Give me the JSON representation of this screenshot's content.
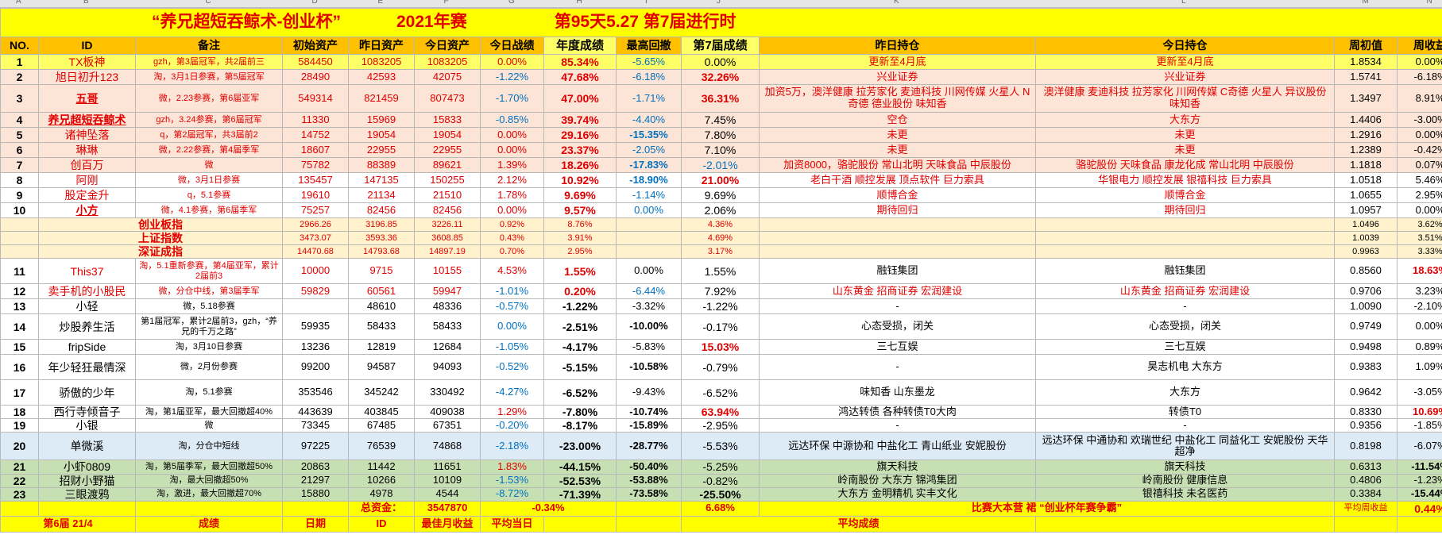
{
  "column_letters": [
    "A",
    "B",
    "C",
    "D",
    "E",
    "F",
    "G",
    "H",
    "I",
    "J",
    "K",
    "L",
    "M",
    "N"
  ],
  "title": {
    "main": "“养兄超短吞鲸术-创业杯”",
    "year": "2021年赛",
    "day": "第95天5.27 第7届进行时"
  },
  "headers": [
    "NO.",
    "ID",
    "备注",
    "初始资产",
    "昨日资产",
    "今日资产",
    "今日战绩",
    "年度成绩",
    "最高回撤",
    "第7届成绩",
    "昨日持仓",
    "今日持仓",
    "周初值",
    "周收益"
  ],
  "rows": [
    {
      "no": "1",
      "id": "TX板神",
      "note": "gzh，第3届冠军，共2届前三",
      "init": "584450",
      "yest": "1083205",
      "today": "1083205",
      "daily": "0.00%",
      "annual": "85.34%",
      "dd": "-5.65%",
      "s7": "0.00%",
      "yhold": "更新至4月底",
      "thold": "更新至4月底",
      "week_init": "1.8534",
      "week_ret": "0.00%"
    },
    {
      "no": "2",
      "id": "旭日初升123",
      "note": "淘，3月1日参赛，第5届冠军",
      "init": "28490",
      "yest": "42593",
      "today": "42075",
      "daily": "-1.22%",
      "annual": "47.68%",
      "dd": "-6.18%",
      "s7": "32.26%",
      "yhold": "兴业证券",
      "thold": "兴业证券",
      "week_init": "1.5741",
      "week_ret": "-6.18%"
    },
    {
      "no": "3",
      "id": "五哥",
      "note": "微，2.23参赛，第6届亚军",
      "init": "549314",
      "yest": "821459",
      "today": "807473",
      "daily": "-1.70%",
      "annual": "47.00%",
      "dd": "-1.71%",
      "s7": "36.31%",
      "yhold": "加资5万，澳洋健康 拉芳家化 麦迪科技 川网传媒 火星人 N奇德 德业股份 味知香",
      "thold": "澳洋健康 麦迪科技 拉芳家化 川网传媒 C奇德 火星人 异议股份 味知香",
      "week_init": "1.3497",
      "week_ret": "8.91%"
    },
    {
      "no": "4",
      "id": "养兄超短吞鲸术",
      "note": "gzh，3.24参赛，第6届冠军",
      "init": "11330",
      "yest": "15969",
      "today": "15833",
      "daily": "-0.85%",
      "annual": "39.74%",
      "dd": "-4.40%",
      "s7": "7.45%",
      "yhold": "空仓",
      "thold": "大东方",
      "week_init": "1.4406",
      "week_ret": "-3.00%"
    },
    {
      "no": "5",
      "id": "诸神坠落",
      "note": "q，第2届冠军，共3届前2",
      "init": "14752",
      "yest": "19054",
      "today": "19054",
      "daily": "0.00%",
      "annual": "29.16%",
      "dd": "-15.35%",
      "s7": "7.80%",
      "yhold": "未更",
      "thold": "未更",
      "week_init": "1.2916",
      "week_ret": "0.00%"
    },
    {
      "no": "6",
      "id": "琳琳",
      "note": "微，2.22参赛，第4届季军",
      "init": "18607",
      "yest": "22955",
      "today": "22955",
      "daily": "0.00%",
      "annual": "23.37%",
      "dd": "-2.05%",
      "s7": "7.10%",
      "yhold": "未更",
      "thold": "未更",
      "week_init": "1.2389",
      "week_ret": "-0.42%"
    },
    {
      "no": "7",
      "id": "创百万",
      "note": "微",
      "init": "75782",
      "yest": "88389",
      "today": "89621",
      "daily": "1.39%",
      "annual": "18.26%",
      "dd": "-17.83%",
      "s7": "-2.01%",
      "yhold": "加资8000，骆驼股份 常山北明 天味食品 中辰股份",
      "thold": "骆驼股份 天味食品 康龙化成 常山北明 中辰股份",
      "week_init": "1.1818",
      "week_ret": "0.07%"
    },
    {
      "no": "8",
      "id": "阿刚",
      "note": "微，3月1日参赛",
      "init": "135457",
      "yest": "147135",
      "today": "150255",
      "daily": "2.12%",
      "annual": "10.92%",
      "dd": "-18.90%",
      "s7": "21.00%",
      "yhold": "老白干酒 顺控发展 顶点软件 巨力索具",
      "thold": "华银电力 顺控发展 银禧科技 巨力索具",
      "week_init": "1.0518",
      "week_ret": "5.46%"
    },
    {
      "no": "9",
      "id": "股定金升",
      "note": "q，5.1参赛",
      "init": "19610",
      "yest": "21134",
      "today": "21510",
      "daily": "1.78%",
      "annual": "9.69%",
      "dd": "-1.14%",
      "s7": "9.69%",
      "yhold": "顺博合金",
      "thold": "顺博合金",
      "week_init": "1.0655",
      "week_ret": "2.95%"
    },
    {
      "no": "10",
      "id": "小方",
      "note": "微，4.1参赛，第6届季军",
      "init": "75257",
      "yest": "82456",
      "today": "82456",
      "daily": "0.00%",
      "annual": "9.57%",
      "dd": "0.00%",
      "s7": "2.06%",
      "yhold": "期待回归",
      "thold": "期待回归",
      "week_init": "1.0957",
      "week_ret": "0.00%"
    }
  ],
  "indices": [
    {
      "name": "创业板指",
      "init": "2966.26",
      "yest": "3196.85",
      "today": "3226.11",
      "daily": "0.92%",
      "annual": "8.76%",
      "s7": "4.36%",
      "week_init": "1.0496",
      "week_ret": "3.62%"
    },
    {
      "name": "上证指数",
      "init": "3473.07",
      "yest": "3593.36",
      "today": "3608.85",
      "daily": "0.43%",
      "annual": "3.91%",
      "s7": "4.69%",
      "week_init": "1.0039",
      "week_ret": "3.51%"
    },
    {
      "name": "深证成指",
      "init": "14470.68",
      "yest": "14793.68",
      "today": "14897.19",
      "daily": "0.70%",
      "annual": "2.95%",
      "s7": "3.17%",
      "week_init": "0.9963",
      "week_ret": "3.33%"
    }
  ],
  "rows2": [
    {
      "no": "11",
      "id": "This37",
      "note": "淘，5.1重新参赛，第4届亚军，累计2届前3",
      "init": "10000",
      "yest": "9715",
      "today": "10155",
      "daily": "4.53%",
      "annual": "1.55%",
      "dd": "0.00%",
      "s7": "1.55%",
      "yhold": "融钰集团",
      "thold": "融钰集团",
      "week_init": "0.8560",
      "week_ret": "18.63%"
    },
    {
      "no": "12",
      "id": "卖手机的小股民",
      "note": "微，分仓中线，第3届季军",
      "init": "59829",
      "yest": "60561",
      "today": "59947",
      "daily": "-1.01%",
      "annual": "0.20%",
      "dd": "-6.44%",
      "s7": "7.92%",
      "yhold": "山东黄金 招商证券 宏润建设",
      "thold": "山东黄金 招商证券 宏润建设",
      "week_init": "0.9706",
      "week_ret": "3.23%"
    },
    {
      "no": "13",
      "id": "小轻",
      "note": "微，5.18参赛",
      "init": "",
      "yest": "48610",
      "today": "48336",
      "daily": "-0.57%",
      "annual": "-1.22%",
      "dd": "-3.32%",
      "s7": "-1.22%",
      "yhold": "-",
      "thold": "-",
      "week_init": "1.0090",
      "week_ret": "-2.10%"
    },
    {
      "no": "14",
      "id": "炒股养生活",
      "note": "第1届冠军，累计2届前3，gzh，“养兄的千万之路”",
      "init": "59935",
      "yest": "58433",
      "today": "58433",
      "daily": "0.00%",
      "annual": "-2.51%",
      "dd": "-10.00%",
      "s7": "-0.17%",
      "yhold": "心态受损，闭关",
      "thold": "心态受损，闭关",
      "week_init": "0.9749",
      "week_ret": "0.00%"
    },
    {
      "no": "15",
      "id": "fripSide",
      "note": "淘，3月10日参赛",
      "init": "13236",
      "yest": "12819",
      "today": "12684",
      "daily": "-1.05%",
      "annual": "-4.17%",
      "dd": "-5.83%",
      "s7": "15.03%",
      "yhold": "三七互娱",
      "thold": "三七互娱",
      "week_init": "0.9498",
      "week_ret": "0.89%"
    },
    {
      "no": "16",
      "id": "年少轻狂最情深",
      "note": "微，2月份参赛",
      "init": "99200",
      "yest": "94587",
      "today": "94093",
      "daily": "-0.52%",
      "annual": "-5.15%",
      "dd": "-10.58%",
      "s7": "-0.79%",
      "yhold": "-",
      "thold": "昊志机电 大东方",
      "week_init": "0.9383",
      "week_ret": "1.09%"
    },
    {
      "no": "17",
      "id": "骄傲的少年",
      "note": "淘，5.1参赛",
      "init": "353546",
      "yest": "345242",
      "today": "330492",
      "daily": "-4.27%",
      "annual": "-6.52%",
      "dd": "-9.43%",
      "s7": "-6.52%",
      "yhold": "味知香 山东墨龙",
      "thold": "大东方",
      "week_init": "0.9642",
      "week_ret": "-3.05%"
    },
    {
      "no": "18",
      "id": "西行寺倾音子",
      "note": "淘，第1届亚军，最大回撤超40%",
      "init": "443639",
      "yest": "403845",
      "today": "409038",
      "daily": "1.29%",
      "annual": "-7.80%",
      "dd": "-10.74%",
      "s7": "63.94%",
      "yhold": "鸿达转债 各种转债T0大肉",
      "thold": "转债T0",
      "week_init": "0.8330",
      "week_ret": "10.69%"
    },
    {
      "no": "19",
      "id": "小银",
      "note": "微",
      "init": "73345",
      "yest": "67485",
      "today": "67351",
      "daily": "-0.20%",
      "annual": "-8.17%",
      "dd": "-15.89%",
      "s7": "-2.95%",
      "yhold": "-",
      "thold": "-",
      "week_init": "0.9356",
      "week_ret": "-1.85%"
    },
    {
      "no": "20",
      "id": "单微溪",
      "note": "淘，分仓中短线",
      "init": "97225",
      "yest": "76539",
      "today": "74868",
      "daily": "-2.18%",
      "annual": "-23.00%",
      "dd": "-28.77%",
      "s7": "-5.53%",
      "yhold": "远达环保 中源协和 中盐化工 青山纸业 安妮股份",
      "thold": "远达环保 中通协和 欢瑞世纪 中盐化工 同益化工 安妮股份 天华超净",
      "week_init": "0.8198",
      "week_ret": "-6.07%"
    },
    {
      "no": "21",
      "id": "小虾0809",
      "note": "淘，第5届季军，最大回撤超50%",
      "init": "20863",
      "yest": "11442",
      "today": "11651",
      "daily": "1.83%",
      "annual": "-44.15%",
      "dd": "-50.40%",
      "s7": "-5.25%",
      "yhold": "旗天科技",
      "thold": "旗天科技",
      "week_init": "0.6313",
      "week_ret": "-11.54%"
    },
    {
      "no": "22",
      "id": "招财小野猫",
      "note": "淘，最大回撤超50%",
      "init": "21297",
      "yest": "10266",
      "today": "10109",
      "daily": "-1.53%",
      "annual": "-52.53%",
      "dd": "-53.88%",
      "s7": "-0.82%",
      "yhold": "岭南股份 大东方 锦鸿集团",
      "thold": "岭南股份 健康信息",
      "week_init": "0.4806",
      "week_ret": "-1.23%"
    },
    {
      "no": "23",
      "id": "三眼渡鸦",
      "note": "淘，激进，最大回撤超70%",
      "init": "15880",
      "yest": "4978",
      "today": "4544",
      "daily": "-8.72%",
      "annual": "-71.39%",
      "dd": "-73.58%",
      "s7": "-25.50%",
      "yhold": "大东方 金明精机 实丰文化",
      "thold": "银禧科技 未名医药",
      "week_init": "0.3384",
      "week_ret": "-15.44%"
    }
  ],
  "summary": {
    "label": "总资金：",
    "total": "3547870",
    "annual": "-0.34%",
    "s7": "6.68%",
    "slogan": "比赛大本营 裙 “创业杯年赛争霸”",
    "avg_label": "平均周收益",
    "avg_week": "0.44%"
  },
  "footer": {
    "c1": "第6届 21/4",
    "c2": "成绩",
    "c3": "日期",
    "c4": "ID",
    "c5": "最佳月收益",
    "c6": "平均当日",
    "c7": "平均成绩"
  },
  "colors": {
    "yellow": "#ffff00",
    "orange": "#ffc000",
    "pink": "#fce4d6",
    "lightyellow": "#fff2cc",
    "blue": "#ddebf7",
    "green": "#c6e0b4",
    "red": "#e00000",
    "blue_text": "#0070c0"
  }
}
